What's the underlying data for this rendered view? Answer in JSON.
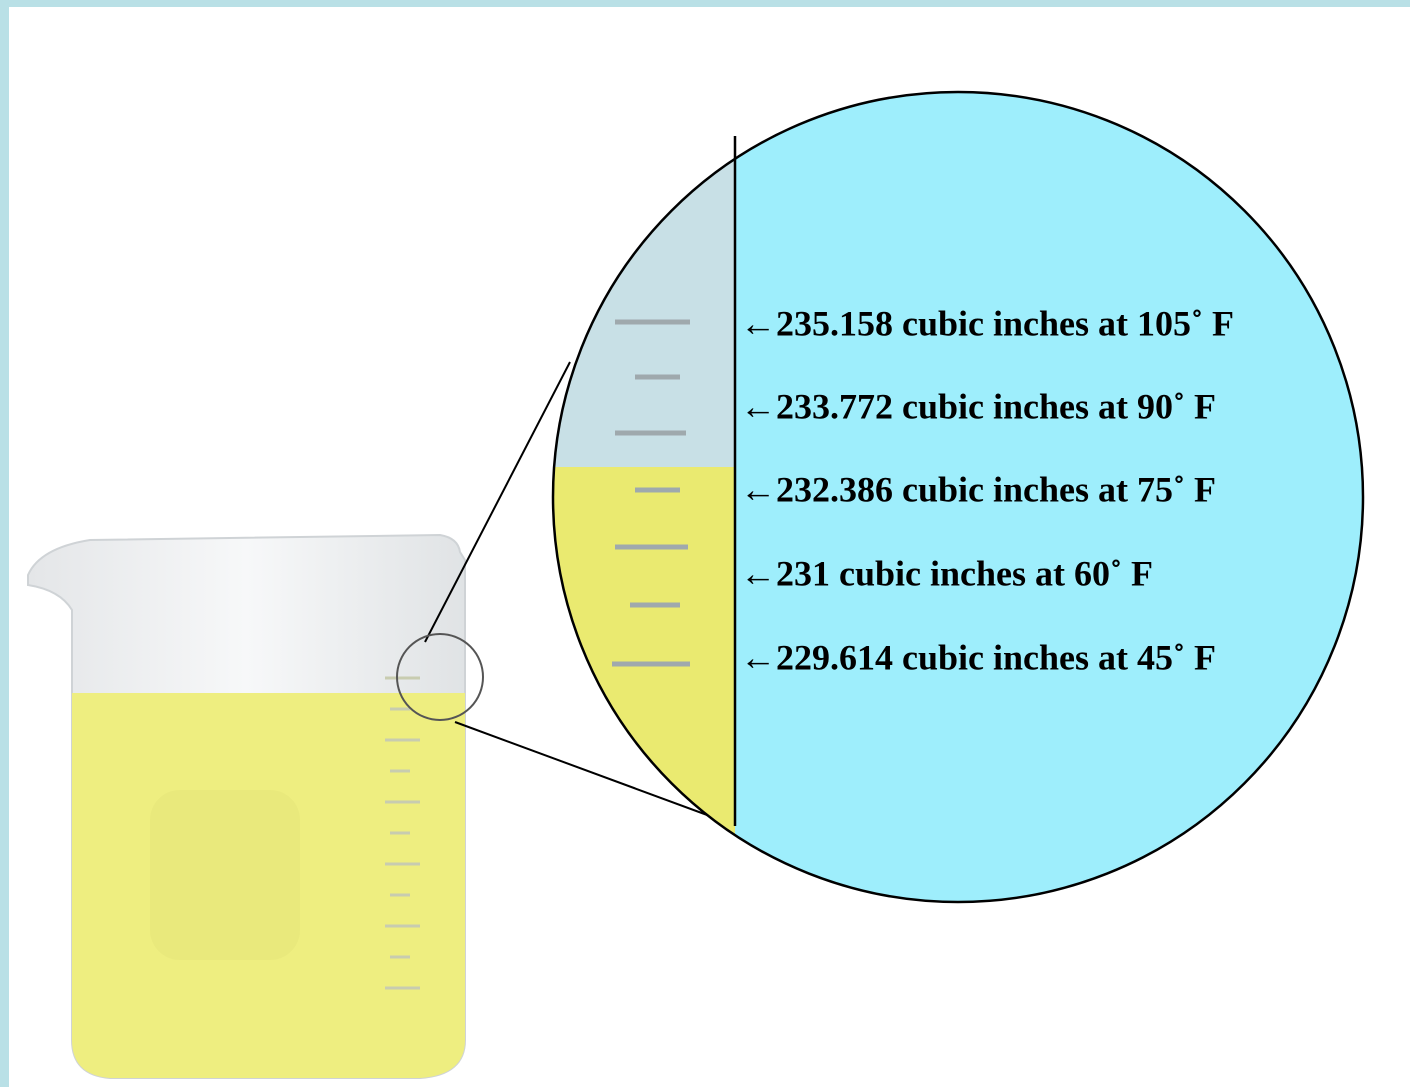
{
  "labels": [
    "←235.158 cubic inches at 105˚ F",
    "←233.772 cubic inches at 90˚ F",
    "←232.386 cubic inches at 75˚ F",
    "←231 cubic inches at 60˚ F",
    "←229.614 cubic inches at 45˚ F"
  ]
}
